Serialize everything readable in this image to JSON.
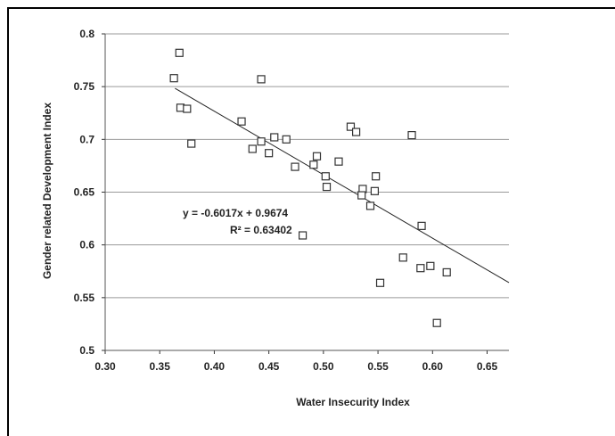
{
  "chart_data": {
    "type": "scatter",
    "title": "",
    "xlabel": "Water Insecurity Index",
    "ylabel": "Gender related Development Index",
    "xlim": [
      0.3,
      0.67
    ],
    "ylim": [
      0.5,
      0.8
    ],
    "xticks": [
      "0.30",
      "0.35",
      "0.40",
      "0.45",
      "0.50",
      "0.55",
      "0.60",
      "0.65"
    ],
    "yticks": [
      "0.5",
      "0.55",
      "0.6",
      "0.65",
      "0.7",
      "0.75",
      "0.8"
    ],
    "grid": "horizontal",
    "marker": "hollow-square",
    "points": [
      {
        "x": 0.368,
        "y": 0.782
      },
      {
        "x": 0.363,
        "y": 0.758
      },
      {
        "x": 0.443,
        "y": 0.757
      },
      {
        "x": 0.369,
        "y": 0.73
      },
      {
        "x": 0.375,
        "y": 0.729
      },
      {
        "x": 0.425,
        "y": 0.717
      },
      {
        "x": 0.525,
        "y": 0.712
      },
      {
        "x": 0.53,
        "y": 0.707
      },
      {
        "x": 0.581,
        "y": 0.704
      },
      {
        "x": 0.455,
        "y": 0.702
      },
      {
        "x": 0.466,
        "y": 0.7
      },
      {
        "x": 0.443,
        "y": 0.698
      },
      {
        "x": 0.379,
        "y": 0.696
      },
      {
        "x": 0.435,
        "y": 0.691
      },
      {
        "x": 0.45,
        "y": 0.687
      },
      {
        "x": 0.494,
        "y": 0.684
      },
      {
        "x": 0.514,
        "y": 0.679
      },
      {
        "x": 0.491,
        "y": 0.676
      },
      {
        "x": 0.474,
        "y": 0.674
      },
      {
        "x": 0.502,
        "y": 0.665
      },
      {
        "x": 0.548,
        "y": 0.665
      },
      {
        "x": 0.503,
        "y": 0.655
      },
      {
        "x": 0.536,
        "y": 0.653
      },
      {
        "x": 0.547,
        "y": 0.651
      },
      {
        "x": 0.535,
        "y": 0.647
      },
      {
        "x": 0.543,
        "y": 0.637
      },
      {
        "x": 0.59,
        "y": 0.618
      },
      {
        "x": 0.481,
        "y": 0.609
      },
      {
        "x": 0.573,
        "y": 0.588
      },
      {
        "x": 0.598,
        "y": 0.58
      },
      {
        "x": 0.589,
        "y": 0.578
      },
      {
        "x": 0.613,
        "y": 0.574
      },
      {
        "x": 0.552,
        "y": 0.564
      },
      {
        "x": 0.604,
        "y": 0.526
      }
    ],
    "trendline": {
      "slope": -0.6017,
      "intercept": 0.9674,
      "x_start": 0.364
    },
    "annotations": [
      "y = -0.6017x + 0.9674",
      "R² = 0.63402"
    ]
  }
}
